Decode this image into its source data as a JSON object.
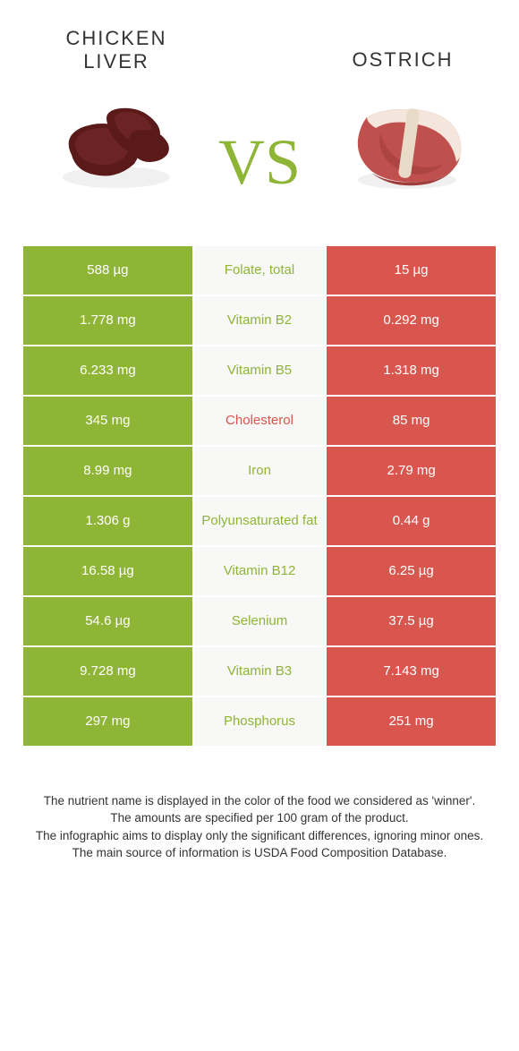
{
  "colors": {
    "food_a_color": "#8fb536",
    "food_b_color": "#d8564d",
    "label_bg": "#f8f8f7",
    "vs_color": "#8fb536",
    "text_dark": "#333333",
    "liver_fill": "#5a1a1a",
    "liver_highlight": "#7d2b2b",
    "meat_red": "#c0504d",
    "meat_fat": "#f4e6dc",
    "meat_bone": "#e8dcc8"
  },
  "foods": {
    "a": {
      "title": "CHICKEN\nLIVER"
    },
    "b": {
      "title": "OSTRICH"
    }
  },
  "vs": "VS",
  "rows": [
    {
      "left": "588 µg",
      "label": "Folate, total",
      "right": "15 µg",
      "winner": "a"
    },
    {
      "left": "1.778 mg",
      "label": "Vitamin B2",
      "right": "0.292 mg",
      "winner": "a"
    },
    {
      "left": "6.233 mg",
      "label": "Vitamin B5",
      "right": "1.318 mg",
      "winner": "a"
    },
    {
      "left": "345 mg",
      "label": "Cholesterol",
      "right": "85 mg",
      "winner": "b"
    },
    {
      "left": "8.99 mg",
      "label": "Iron",
      "right": "2.79 mg",
      "winner": "a"
    },
    {
      "left": "1.306 g",
      "label": "Polyunsaturated fat",
      "right": "0.44 g",
      "winner": "a"
    },
    {
      "left": "16.58 µg",
      "label": "Vitamin B12",
      "right": "6.25 µg",
      "winner": "a"
    },
    {
      "left": "54.6 µg",
      "label": "Selenium",
      "right": "37.5 µg",
      "winner": "a"
    },
    {
      "left": "9.728 mg",
      "label": "Vitamin B3",
      "right": "7.143 mg",
      "winner": "a"
    },
    {
      "left": "297 mg",
      "label": "Phosphorus",
      "right": "251 mg",
      "winner": "a"
    }
  ],
  "footer": [
    "The nutrient name is displayed in the color of the food we considered as 'winner'.",
    "The amounts are specified per 100 gram of the product.",
    "The infographic aims to display only the significant differences, ignoring minor ones.",
    "The main source of information is USDA Food Composition Database."
  ]
}
